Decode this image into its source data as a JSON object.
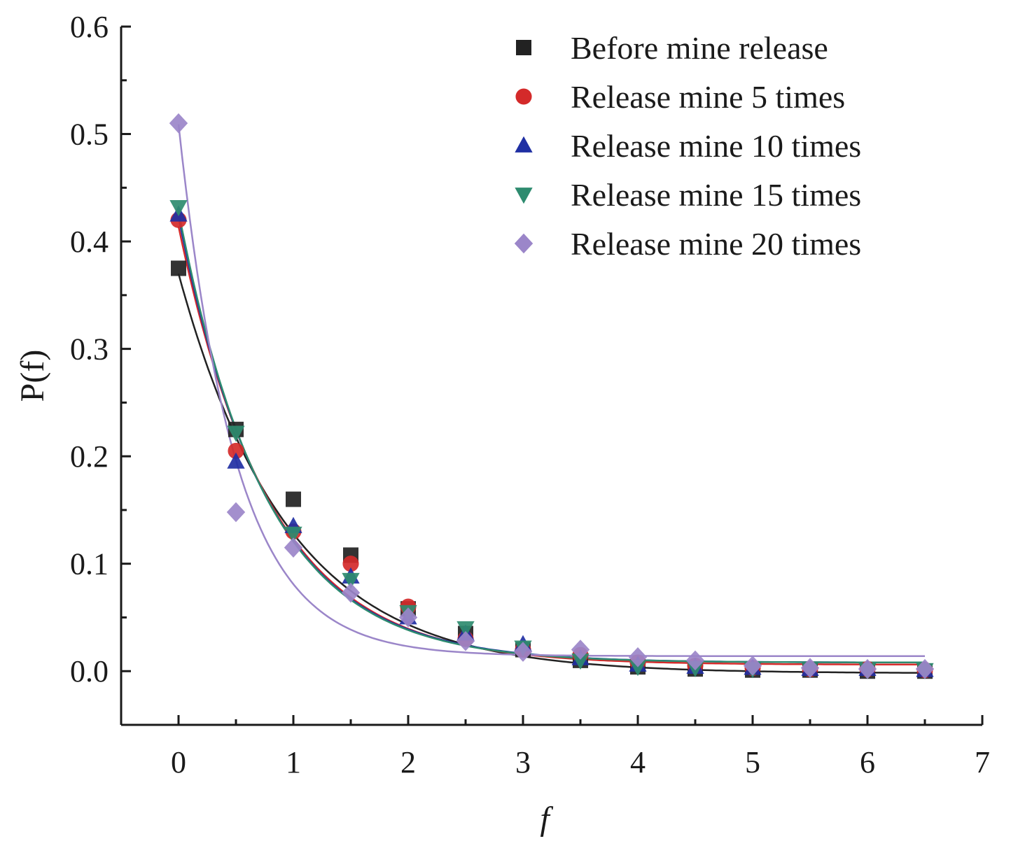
{
  "chart_data": {
    "type": "scatter",
    "xlabel": "f",
    "ylabel": "P(f)",
    "xlim": [
      -0.5,
      7
    ],
    "ylim": [
      -0.05,
      0.6
    ],
    "xticks": [
      "0",
      "1",
      "2",
      "3",
      "4",
      "5",
      "6",
      "7"
    ],
    "yticks": [
      "0.0",
      "0.1",
      "0.2",
      "0.3",
      "0.4",
      "0.5",
      "0.6"
    ],
    "legend_position": "top-right",
    "grid": false,
    "fit_curves": true,
    "series": [
      {
        "name": "Before mine release",
        "marker": "square",
        "color": "#222222",
        "x": [
          0,
          0.5,
          1,
          1.5,
          2,
          2.5,
          3,
          3.5,
          4,
          4.5,
          5,
          5.5,
          6,
          6.5
        ],
        "y": [
          0.375,
          0.225,
          0.16,
          0.108,
          0.058,
          0.035,
          0.02,
          0.01,
          0.004,
          0.002,
          0.001,
          0.001,
          0.0,
          0.0
        ],
        "fit": {
          "y0": -0.002,
          "A": 0.372,
          "t": 0.95
        }
      },
      {
        "name": "Release mine 5 times",
        "marker": "circle",
        "color": "#d42a2a",
        "x": [
          0,
          0.5,
          1,
          1.5,
          2,
          2.5,
          3,
          3.5,
          4,
          4.5,
          5,
          5.5,
          6,
          6.5
        ],
        "y": [
          0.42,
          0.205,
          0.13,
          0.1,
          0.06,
          0.03,
          0.02,
          0.015,
          0.008,
          0.005,
          0.003,
          0.002,
          0.002,
          0.001
        ],
        "fit": {
          "y0": 0.006,
          "A": 0.408,
          "t": 0.8
        }
      },
      {
        "name": "Release mine 10 times",
        "marker": "triangle-up",
        "color": "#1f2fa3",
        "x": [
          0,
          0.5,
          1,
          1.5,
          2,
          2.5,
          3,
          3.5,
          4,
          4.5,
          5,
          5.5,
          6,
          6.5
        ],
        "y": [
          0.425,
          0.195,
          0.135,
          0.088,
          0.05,
          0.035,
          0.025,
          0.012,
          0.006,
          0.004,
          0.003,
          0.002,
          0.002,
          0.001
        ],
        "fit": {
          "y0": 0.008,
          "A": 0.415,
          "t": 0.77
        }
      },
      {
        "name": "Release mine 15 times",
        "marker": "triangle-down",
        "color": "#2e8b6f",
        "x": [
          0,
          0.5,
          1,
          1.5,
          2,
          2.5,
          3,
          3.5,
          4,
          4.5,
          5,
          5.5,
          6,
          6.5
        ],
        "y": [
          0.432,
          0.222,
          0.128,
          0.085,
          0.055,
          0.04,
          0.022,
          0.01,
          0.004,
          0.003,
          0.002,
          0.002,
          0.001,
          0.001
        ],
        "fit": {
          "y0": 0.008,
          "A": 0.42,
          "t": 0.76
        }
      },
      {
        "name": "Release mine 20 times",
        "marker": "diamond",
        "color": "#9b86c9",
        "x": [
          0,
          0.5,
          1,
          1.5,
          2,
          2.5,
          3,
          3.5,
          4,
          4.5,
          5,
          5.5,
          6,
          6.5
        ],
        "y": [
          0.51,
          0.148,
          0.115,
          0.073,
          0.05,
          0.028,
          0.018,
          0.02,
          0.013,
          0.01,
          0.005,
          0.003,
          0.002,
          0.002
        ],
        "fit": {
          "y0": 0.014,
          "A": 0.495,
          "t": 0.5
        }
      }
    ]
  }
}
